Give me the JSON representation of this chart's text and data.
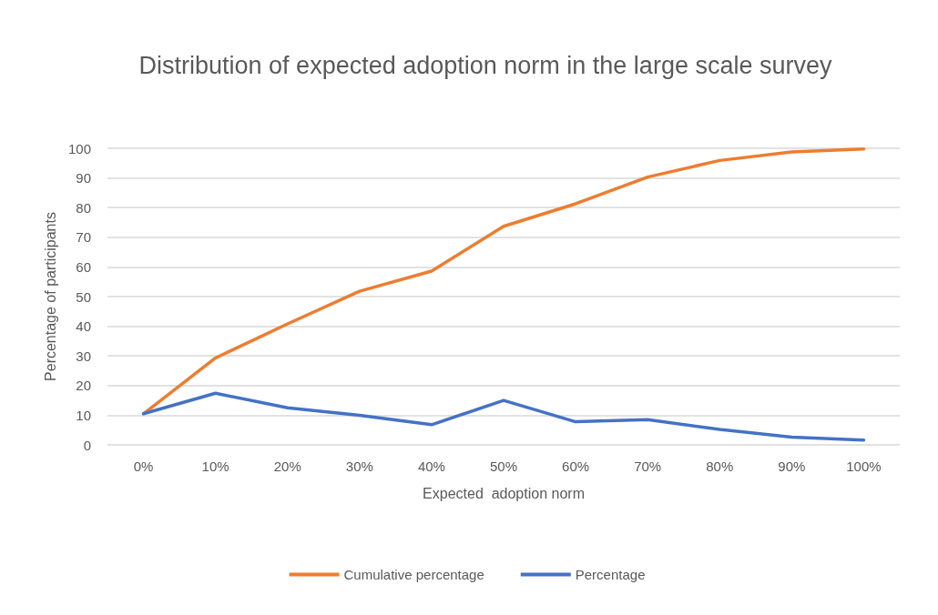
{
  "chart_data": {
    "type": "line",
    "title": "Distribution of expected adoption norm in the large scale survey",
    "xlabel": "Expected  adoption norm",
    "ylabel": "Percentage of participants",
    "categories": [
      "0%",
      "10%",
      "20%",
      "30%",
      "40%",
      "50%",
      "60%",
      "70%",
      "80%",
      "90%",
      "100%"
    ],
    "series": [
      {
        "name": "Cumulative percentage",
        "color": "#ed7d31",
        "values": [
          10.5,
          29.3,
          40.8,
          51.8,
          58.6,
          73.7,
          81.3,
          90.3,
          95.9,
          98.8,
          99.8
        ]
      },
      {
        "name": "Percentage",
        "color": "#4472c4",
        "values": [
          10.5,
          17.4,
          12.5,
          10,
          6.8,
          15,
          7.8,
          8.5,
          5.2,
          2.6,
          1.6
        ]
      }
    ],
    "ylim": [
      0,
      100
    ],
    "yticks": [
      0,
      10,
      20,
      30,
      40,
      50,
      60,
      70,
      80,
      90,
      100
    ],
    "grid": "y",
    "legend": "bottom",
    "marker": "none",
    "line_style": "solid"
  }
}
